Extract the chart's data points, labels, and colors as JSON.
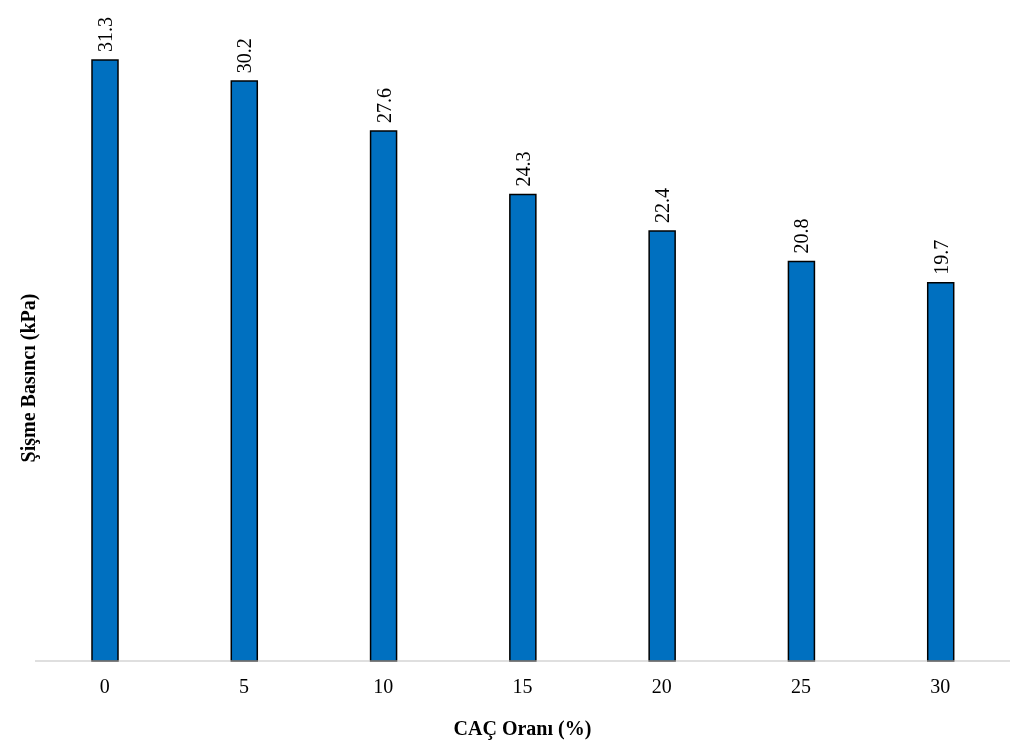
{
  "chart_data": {
    "type": "bar",
    "xlabel": "CAÇ Oranı (%)",
    "ylabel": "Şişme Basıncı (kPa)",
    "categories": [
      "0",
      "5",
      "10",
      "15",
      "20",
      "25",
      "30"
    ],
    "values": [
      31.3,
      30.2,
      27.6,
      24.3,
      22.4,
      20.8,
      19.7
    ],
    "color": "#0070c0",
    "data_labels": true,
    "tick_labels": "x"
  }
}
